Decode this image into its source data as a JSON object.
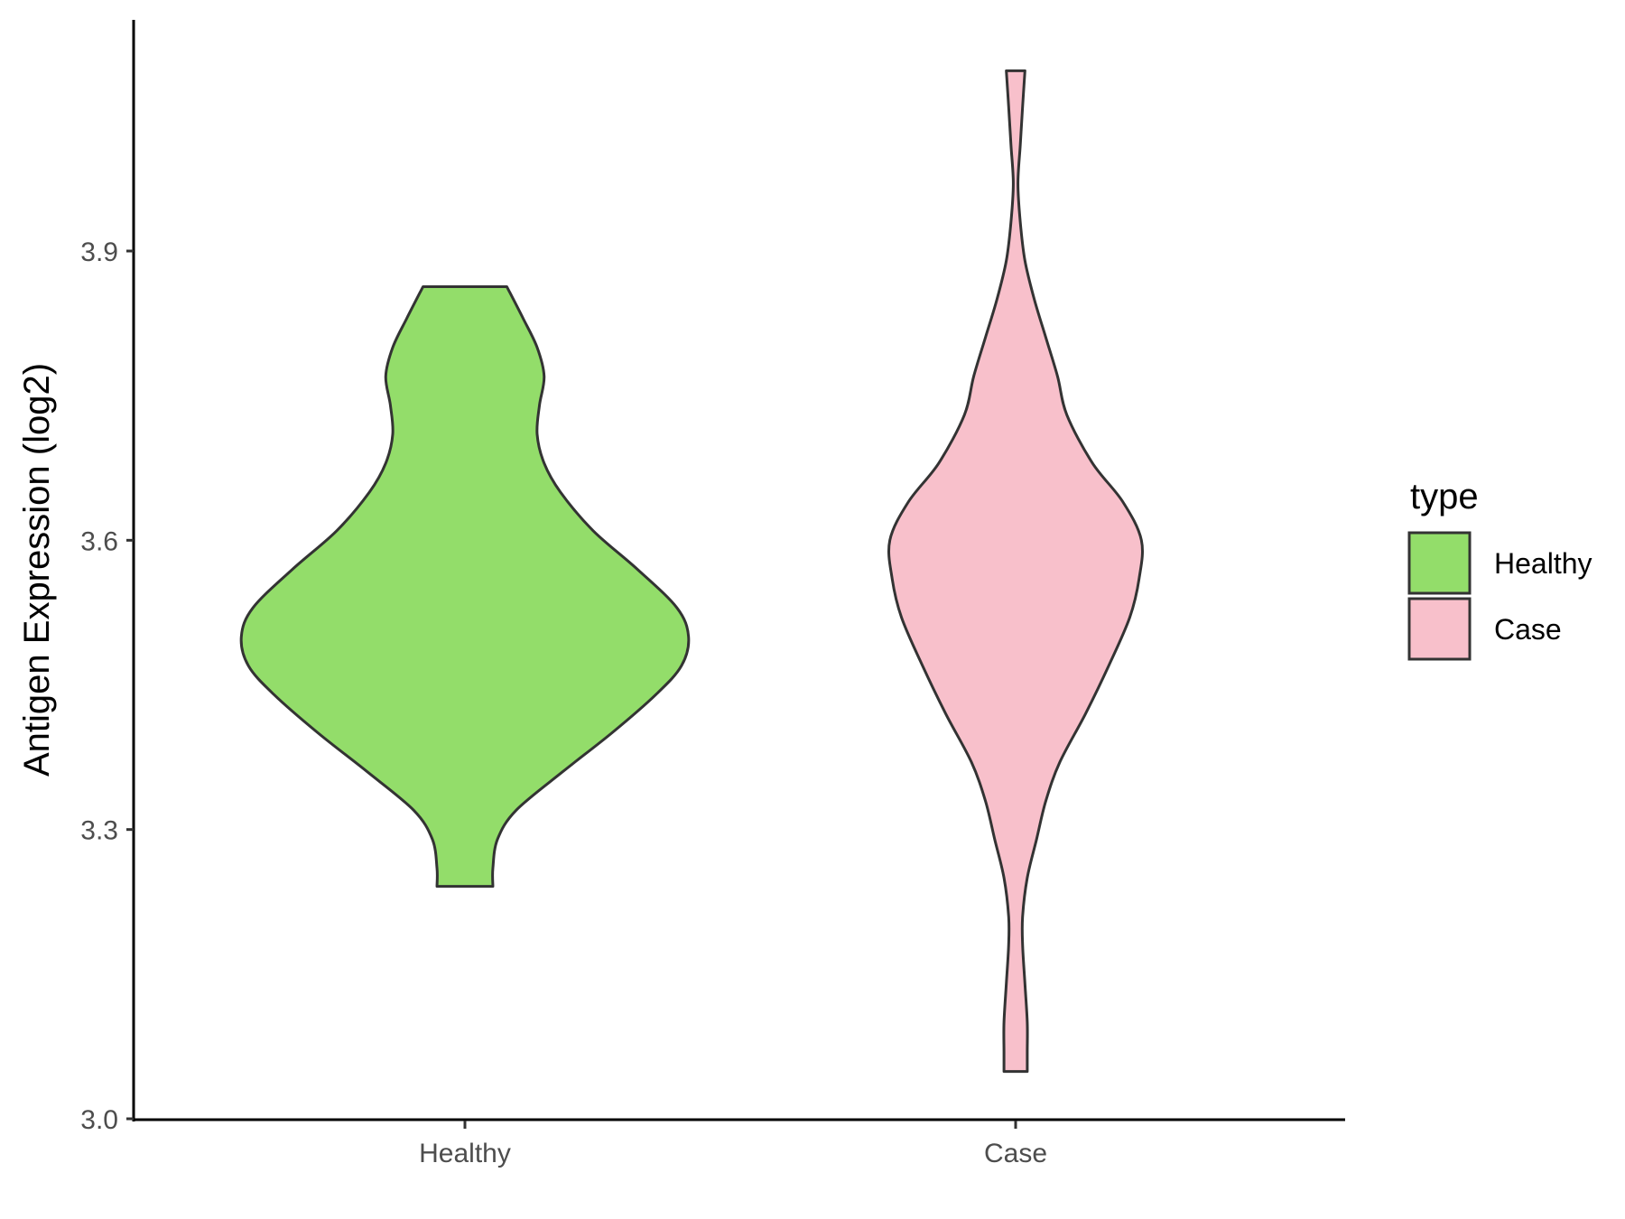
{
  "chart_data": {
    "type": "violin",
    "ylabel": "Antigen Expression (log2)",
    "xlabel": "",
    "ylim": [
      3.0,
      4.14
    ],
    "y_ticks": [
      3.0,
      3.3,
      3.6,
      3.9
    ],
    "y_tick_labels": [
      "3.0",
      "3.3",
      "3.6",
      "3.9"
    ],
    "categories": [
      "Healthy",
      "Case"
    ],
    "grid": false,
    "legend": {
      "title": "type",
      "position": "right",
      "entries": [
        {
          "label": "Healthy",
          "color": "#93DD6A"
        },
        {
          "label": "Case",
          "color": "#F8C0CB"
        }
      ]
    },
    "series": [
      {
        "name": "Healthy",
        "color": "#93DD6A",
        "y_min": 3.241,
        "y_max": 3.863,
        "density_profile": [
          [
            3.241,
            0.12
          ],
          [
            3.26,
            0.12
          ],
          [
            3.29,
            0.14
          ],
          [
            3.32,
            0.22
          ],
          [
            3.36,
            0.42
          ],
          [
            3.4,
            0.63
          ],
          [
            3.44,
            0.82
          ],
          [
            3.47,
            0.93
          ],
          [
            3.5,
            0.96
          ],
          [
            3.53,
            0.91
          ],
          [
            3.57,
            0.74
          ],
          [
            3.61,
            0.55
          ],
          [
            3.65,
            0.41
          ],
          [
            3.68,
            0.34
          ],
          [
            3.71,
            0.31
          ],
          [
            3.74,
            0.32
          ],
          [
            3.77,
            0.34
          ],
          [
            3.8,
            0.31
          ],
          [
            3.83,
            0.25
          ],
          [
            3.863,
            0.18
          ]
        ]
      },
      {
        "name": "Case",
        "color": "#F8C0CB",
        "y_min": 3.049,
        "y_max": 4.087,
        "density_profile": [
          [
            3.049,
            0.05
          ],
          [
            3.07,
            0.05
          ],
          [
            3.1,
            0.05
          ],
          [
            3.14,
            0.04
          ],
          [
            3.18,
            0.03
          ],
          [
            3.21,
            0.03
          ],
          [
            3.25,
            0.05
          ],
          [
            3.29,
            0.09
          ],
          [
            3.33,
            0.13
          ],
          [
            3.37,
            0.19
          ],
          [
            3.42,
            0.3
          ],
          [
            3.47,
            0.4
          ],
          [
            3.52,
            0.49
          ],
          [
            3.56,
            0.53
          ],
          [
            3.6,
            0.54
          ],
          [
            3.64,
            0.46
          ],
          [
            3.68,
            0.33
          ],
          [
            3.73,
            0.22
          ],
          [
            3.77,
            0.18
          ],
          [
            3.81,
            0.13
          ],
          [
            3.85,
            0.08
          ],
          [
            3.89,
            0.04
          ],
          [
            3.93,
            0.02
          ],
          [
            3.97,
            0.01
          ],
          [
            4.01,
            0.02
          ],
          [
            4.05,
            0.03
          ],
          [
            4.087,
            0.04
          ]
        ]
      }
    ]
  }
}
